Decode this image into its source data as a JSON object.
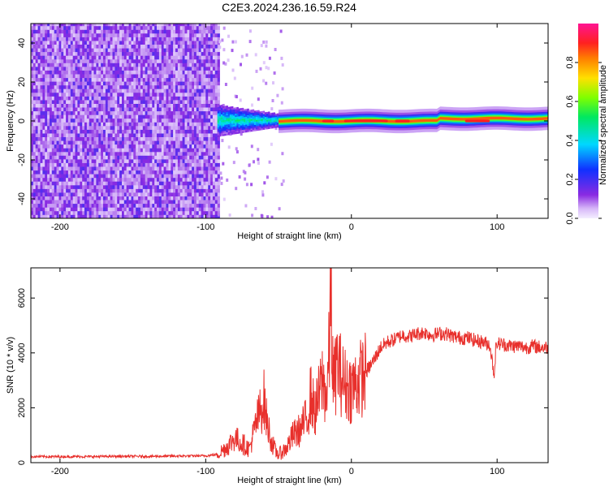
{
  "figure_title": "C2E3.2024.236.16.59.R24",
  "colors": {
    "snr_line": "#e8302c",
    "frame": "#000000",
    "background": "#ffffff"
  },
  "chart_data": [
    {
      "type": "heatmap",
      "title": "",
      "xlabel": "Height of straight line (km)",
      "ylabel": "Frequency (Hz)",
      "xlim": [
        -220,
        135
      ],
      "ylim": [
        -50,
        50
      ],
      "xticks": [
        -200,
        -100,
        0,
        100
      ],
      "yticks": [
        -40,
        -20,
        0,
        20,
        40
      ],
      "xtick_labels": [
        "-200",
        "-100",
        "0",
        "100"
      ],
      "ytick_labels": [
        "-40",
        "-20",
        "0",
        "20",
        "40"
      ],
      "colorbar": {
        "label": "Normalized spectral amplitude",
        "range": [
          0.0,
          1.0
        ],
        "ticks": [
          0.0,
          0.2,
          0.4,
          0.6,
          0.8
        ],
        "tick_labels": [
          "0.0",
          "0.2",
          "0.4",
          "0.6",
          "0.8"
        ],
        "colormap": "rainbow"
      },
      "regions": [
        {
          "name": "noise",
          "x_range": [
            -220,
            -92
          ],
          "freq_range": [
            -50,
            50
          ],
          "amplitude": 0.15
        },
        {
          "name": "transition",
          "x_range": [
            -92,
            -50
          ],
          "freq_range": [
            -8,
            8
          ],
          "amplitude": 0.4
        },
        {
          "name": "carrier",
          "x_range": [
            -50,
            135
          ],
          "freq_center": 0,
          "freq_halfwidth": 2,
          "amplitude": 0.95
        }
      ]
    },
    {
      "type": "line",
      "title": "",
      "xlabel": "Height of straight line (km)",
      "ylabel": "SNR (10 * v/v)",
      "xlim": [
        -220,
        135
      ],
      "ylim": [
        0,
        7100
      ],
      "xticks": [
        -200,
        -100,
        0,
        100
      ],
      "yticks": [
        0,
        2000,
        4000,
        6000
      ],
      "xtick_labels": [
        "-200",
        "-100",
        "0",
        "100"
      ],
      "ytick_labels": [
        "0",
        "2000",
        "4000",
        "6000"
      ],
      "series": [
        {
          "name": "SNR",
          "x": [
            -220,
            -200,
            -180,
            -160,
            -140,
            -120,
            -100,
            -92,
            -85,
            -80,
            -75,
            -70,
            -65,
            -60,
            -58,
            -55,
            -52,
            -50,
            -45,
            -40,
            -35,
            -30,
            -28,
            -25,
            -20,
            -17,
            -15,
            -14,
            -13,
            -12,
            -10,
            -5,
            0,
            5,
            10,
            15,
            20,
            25,
            30,
            35,
            40,
            45,
            50,
            55,
            60,
            65,
            70,
            75,
            80,
            85,
            90,
            95,
            98,
            99,
            100,
            105,
            110,
            115,
            120,
            125,
            130,
            135
          ],
          "values": [
            220,
            220,
            220,
            230,
            230,
            240,
            250,
            300,
            600,
            900,
            700,
            500,
            1500,
            2300,
            1500,
            800,
            400,
            300,
            500,
            1000,
            1200,
            1700,
            2500,
            1800,
            3000,
            2400,
            4200,
            6900,
            3500,
            2800,
            3600,
            2900,
            2700,
            3000,
            3300,
            3700,
            4200,
            4400,
            4500,
            4650,
            4600,
            4700,
            4750,
            4650,
            4700,
            4700,
            4600,
            4550,
            4550,
            4450,
            4400,
            4300,
            3200,
            4100,
            4350,
            4300,
            4250,
            4250,
            4200,
            4250,
            4200,
            4200
          ]
        }
      ]
    }
  ]
}
